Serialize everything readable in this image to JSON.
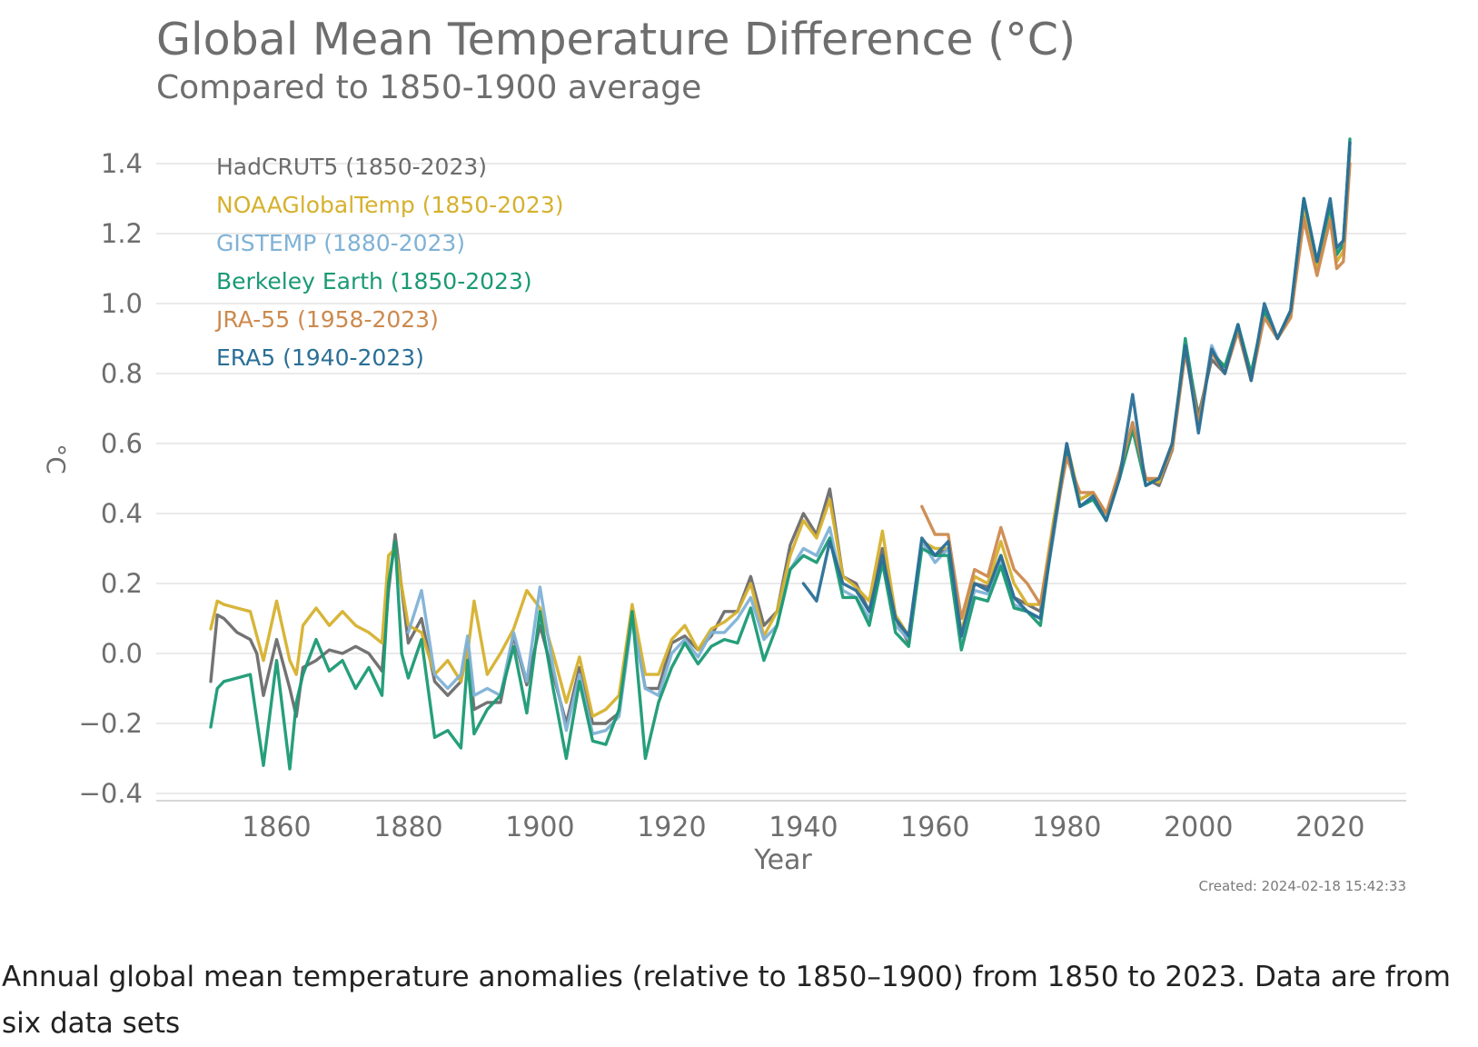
{
  "chart_data": {
    "type": "line",
    "title": "Global Mean Temperature Difference (°C)",
    "subtitle": "Compared to 1850-1900 average",
    "xlabel": "Year",
    "ylabel": "°C",
    "xlim": [
      1850,
      2023
    ],
    "ylim": [
      -0.4,
      1.45
    ],
    "xticks": [
      1860,
      1880,
      1900,
      1920,
      1940,
      1960,
      1980,
      2000,
      2020
    ],
    "yticks": [
      1.4,
      1.2,
      1.0,
      0.8,
      0.6,
      0.4,
      0.2,
      0.0,
      -0.2,
      -0.4
    ],
    "ytick_labels": [
      "1.4",
      "1.2",
      "1.0",
      "0.8",
      "0.6",
      "0.4",
      "0.2",
      "0.0",
      "−0.2",
      "−0.4"
    ],
    "grid": true,
    "legend_position": "top-left",
    "created": "Created: 2024-02-18 15:42:33",
    "series": [
      {
        "name": "HadCRUT5 (1850-2023)",
        "color": "#6b6b6b",
        "x": [
          1850,
          1851,
          1852,
          1854,
          1856,
          1857,
          1858,
          1860,
          1862,
          1863,
          1864,
          1866,
          1868,
          1870,
          1872,
          1874,
          1876,
          1877,
          1878,
          1880,
          1882,
          1884,
          1886,
          1888,
          1889,
          1890,
          1892,
          1894,
          1896,
          1898,
          1900,
          1902,
          1904,
          1906,
          1908,
          1910,
          1912,
          1914,
          1916,
          1918,
          1920,
          1922,
          1924,
          1926,
          1928,
          1930,
          1932,
          1934,
          1936,
          1938,
          1940,
          1942,
          1944,
          1946,
          1948,
          1950,
          1952,
          1954,
          1956,
          1958,
          1960,
          1962,
          1964,
          1966,
          1968,
          1970,
          1972,
          1974,
          1976,
          1978,
          1980,
          1982,
          1984,
          1986,
          1988,
          1990,
          1992,
          1994,
          1996,
          1998,
          2000,
          2002,
          2004,
          2006,
          2008,
          2010,
          2012,
          2014,
          2016,
          2018,
          2020,
          2021,
          2022,
          2023
        ],
        "values": [
          -0.08,
          0.11,
          0.1,
          0.06,
          0.04,
          0.0,
          -0.12,
          0.04,
          -0.1,
          -0.18,
          -0.04,
          -0.02,
          0.01,
          0.0,
          0.02,
          0.0,
          -0.05,
          0.18,
          0.34,
          0.03,
          0.1,
          -0.08,
          -0.12,
          -0.08,
          0.03,
          -0.16,
          -0.14,
          -0.14,
          0.05,
          -0.09,
          0.08,
          -0.06,
          -0.2,
          -0.04,
          -0.2,
          -0.2,
          -0.17,
          0.11,
          -0.1,
          -0.1,
          0.03,
          0.05,
          0.01,
          0.05,
          0.12,
          0.12,
          0.22,
          0.08,
          0.12,
          0.31,
          0.4,
          0.34,
          0.47,
          0.22,
          0.2,
          0.12,
          0.3,
          0.1,
          0.03,
          0.32,
          0.28,
          0.3,
          0.05,
          0.2,
          0.19,
          0.28,
          0.16,
          0.14,
          0.12,
          0.34,
          0.58,
          0.44,
          0.46,
          0.4,
          0.5,
          0.64,
          0.5,
          0.48,
          0.58,
          0.88,
          0.68,
          0.84,
          0.8,
          0.94,
          0.78,
          0.98,
          0.9,
          0.98,
          1.26,
          1.1,
          1.27,
          1.14,
          1.17,
          1.46
        ]
      },
      {
        "name": "NOAAGlobalTemp (1850-2023)",
        "color": "#d6b12e",
        "x": [
          1850,
          1851,
          1852,
          1854,
          1856,
          1858,
          1860,
          1862,
          1863,
          1864,
          1866,
          1868,
          1870,
          1872,
          1874,
          1876,
          1877,
          1878,
          1880,
          1882,
          1884,
          1886,
          1888,
          1889,
          1890,
          1892,
          1894,
          1896,
          1898,
          1900,
          1902,
          1904,
          1906,
          1908,
          1910,
          1912,
          1914,
          1916,
          1918,
          1920,
          1922,
          1924,
          1926,
          1928,
          1930,
          1932,
          1934,
          1936,
          1938,
          1940,
          1942,
          1944,
          1946,
          1948,
          1950,
          1952,
          1954,
          1956,
          1958,
          1960,
          1962,
          1964,
          1966,
          1968,
          1970,
          1972,
          1974,
          1976,
          1978,
          1980,
          1982,
          1984,
          1986,
          1988,
          1990,
          1992,
          1994,
          1996,
          1998,
          2000,
          2002,
          2004,
          2006,
          2008,
          2010,
          2012,
          2014,
          2016,
          2018,
          2020,
          2021,
          2022,
          2023
        ],
        "values": [
          0.07,
          0.15,
          0.14,
          0.13,
          0.12,
          -0.02,
          0.15,
          -0.02,
          -0.06,
          0.08,
          0.13,
          0.08,
          0.12,
          0.08,
          0.06,
          0.03,
          0.28,
          0.3,
          0.08,
          0.06,
          -0.06,
          -0.02,
          -0.08,
          0.0,
          0.15,
          -0.06,
          0.0,
          0.07,
          0.18,
          0.13,
          0.0,
          -0.14,
          -0.01,
          -0.18,
          -0.16,
          -0.12,
          0.14,
          -0.06,
          -0.06,
          0.04,
          0.08,
          0.01,
          0.07,
          0.09,
          0.12,
          0.2,
          0.05,
          0.12,
          0.28,
          0.38,
          0.33,
          0.44,
          0.22,
          0.19,
          0.15,
          0.35,
          0.11,
          0.05,
          0.32,
          0.3,
          0.3,
          0.06,
          0.22,
          0.2,
          0.32,
          0.2,
          0.14,
          0.14,
          0.38,
          0.6,
          0.44,
          0.46,
          0.4,
          0.52,
          0.64,
          0.5,
          0.49,
          0.6,
          0.88,
          0.66,
          0.86,
          0.82,
          0.92,
          0.8,
          0.98,
          0.9,
          0.96,
          1.28,
          1.1,
          1.25,
          1.12,
          1.15,
          1.43
        ]
      },
      {
        "name": "GISTEMP (1880-2023)",
        "color": "#7fb2d6",
        "x": [
          1880,
          1882,
          1884,
          1886,
          1888,
          1889,
          1890,
          1892,
          1894,
          1896,
          1898,
          1900,
          1902,
          1904,
          1906,
          1908,
          1910,
          1912,
          1914,
          1916,
          1918,
          1920,
          1922,
          1924,
          1926,
          1928,
          1930,
          1932,
          1934,
          1936,
          1938,
          1940,
          1942,
          1944,
          1946,
          1948,
          1950,
          1952,
          1954,
          1956,
          1958,
          1960,
          1962,
          1964,
          1966,
          1968,
          1970,
          1972,
          1974,
          1976,
          1978,
          1980,
          1982,
          1984,
          1986,
          1988,
          1990,
          1992,
          1994,
          1996,
          1998,
          2000,
          2002,
          2004,
          2006,
          2008,
          2010,
          2012,
          2014,
          2016,
          2018,
          2020,
          2021,
          2022,
          2023
        ],
        "values": [
          0.06,
          0.18,
          -0.06,
          -0.1,
          -0.06,
          0.05,
          -0.12,
          -0.1,
          -0.12,
          0.06,
          -0.08,
          0.19,
          -0.04,
          -0.22,
          -0.06,
          -0.23,
          -0.22,
          -0.18,
          0.1,
          -0.1,
          -0.12,
          0.0,
          0.04,
          -0.01,
          0.06,
          0.06,
          0.1,
          0.16,
          0.04,
          0.08,
          0.24,
          0.3,
          0.28,
          0.36,
          0.18,
          0.16,
          0.1,
          0.26,
          0.08,
          0.04,
          0.32,
          0.26,
          0.3,
          0.04,
          0.18,
          0.17,
          0.26,
          0.14,
          0.12,
          0.1,
          0.34,
          0.6,
          0.42,
          0.44,
          0.38,
          0.5,
          0.66,
          0.48,
          0.5,
          0.58,
          0.88,
          0.64,
          0.88,
          0.8,
          0.94,
          0.78,
          0.98,
          0.9,
          0.98,
          1.3,
          1.12,
          1.28,
          1.14,
          1.18,
          1.44
        ]
      },
      {
        "name": "Berkeley Earth (1850-2023)",
        "color": "#1a9a74",
        "x": [
          1850,
          1851,
          1852,
          1854,
          1856,
          1858,
          1860,
          1862,
          1863,
          1864,
          1866,
          1868,
          1870,
          1872,
          1874,
          1876,
          1877,
          1878,
          1879,
          1880,
          1882,
          1884,
          1886,
          1888,
          1889,
          1890,
          1892,
          1894,
          1896,
          1898,
          1900,
          1902,
          1904,
          1906,
          1908,
          1910,
          1912,
          1914,
          1916,
          1918,
          1920,
          1922,
          1924,
          1926,
          1928,
          1930,
          1932,
          1934,
          1936,
          1938,
          1940,
          1942,
          1944,
          1946,
          1948,
          1950,
          1952,
          1954,
          1956,
          1958,
          1960,
          1962,
          1964,
          1966,
          1968,
          1970,
          1972,
          1974,
          1976,
          1978,
          1980,
          1982,
          1984,
          1986,
          1988,
          1990,
          1992,
          1994,
          1996,
          1998,
          2000,
          2002,
          2004,
          2006,
          2008,
          2010,
          2012,
          2014,
          2016,
          2018,
          2020,
          2021,
          2022,
          2023
        ],
        "values": [
          -0.21,
          -0.1,
          -0.08,
          -0.07,
          -0.06,
          -0.32,
          -0.02,
          -0.33,
          -0.14,
          -0.06,
          0.04,
          -0.05,
          -0.02,
          -0.1,
          -0.04,
          -0.12,
          0.2,
          0.32,
          0.0,
          -0.07,
          0.04,
          -0.24,
          -0.22,
          -0.27,
          -0.02,
          -0.23,
          -0.16,
          -0.12,
          0.02,
          -0.17,
          0.12,
          -0.1,
          -0.3,
          -0.08,
          -0.25,
          -0.26,
          -0.16,
          0.12,
          -0.3,
          -0.14,
          -0.04,
          0.03,
          -0.03,
          0.02,
          0.04,
          0.03,
          0.13,
          -0.02,
          0.08,
          0.24,
          0.28,
          0.26,
          0.33,
          0.16,
          0.16,
          0.08,
          0.26,
          0.06,
          0.02,
          0.3,
          0.28,
          0.28,
          0.01,
          0.16,
          0.15,
          0.25,
          0.13,
          0.12,
          0.08,
          0.36,
          0.58,
          0.42,
          0.44,
          0.38,
          0.5,
          0.64,
          0.48,
          0.5,
          0.58,
          0.9,
          0.66,
          0.86,
          0.82,
          0.94,
          0.8,
          0.98,
          0.9,
          0.98,
          1.3,
          1.12,
          1.28,
          1.14,
          1.17,
          1.47
        ]
      },
      {
        "name": "JRA-55 (1958-2023)",
        "color": "#cc8a4e",
        "x": [
          1958,
          1960,
          1962,
          1964,
          1966,
          1968,
          1970,
          1972,
          1974,
          1976,
          1978,
          1980,
          1982,
          1984,
          1986,
          1988,
          1990,
          1992,
          1994,
          1996,
          1998,
          2000,
          2002,
          2004,
          2006,
          2008,
          2010,
          2012,
          2014,
          2016,
          2018,
          2020,
          2021,
          2022,
          2023
        ],
        "values": [
          0.42,
          0.34,
          0.34,
          0.1,
          0.24,
          0.22,
          0.36,
          0.24,
          0.2,
          0.14,
          0.36,
          0.56,
          0.46,
          0.46,
          0.4,
          0.52,
          0.66,
          0.5,
          0.5,
          0.58,
          0.86,
          0.66,
          0.86,
          0.8,
          0.92,
          0.78,
          0.96,
          0.9,
          0.96,
          1.24,
          1.08,
          1.24,
          1.1,
          1.12,
          1.4
        ]
      },
      {
        "name": "ERA5 (1940-2023)",
        "color": "#2a6f97",
        "x": [
          1940,
          1942,
          1944,
          1946,
          1948,
          1950,
          1952,
          1954,
          1956,
          1958,
          1960,
          1962,
          1964,
          1966,
          1968,
          1970,
          1972,
          1974,
          1976,
          1978,
          1980,
          1982,
          1984,
          1986,
          1988,
          1990,
          1992,
          1994,
          1996,
          1998,
          2000,
          2002,
          2004,
          2006,
          2008,
          2010,
          2012,
          2014,
          2016,
          2018,
          2020,
          2021,
          2022,
          2023
        ],
        "values": [
          0.2,
          0.15,
          0.32,
          0.2,
          0.18,
          0.12,
          0.28,
          0.1,
          0.05,
          0.33,
          0.28,
          0.32,
          0.05,
          0.2,
          0.18,
          0.28,
          0.16,
          0.12,
          0.1,
          0.35,
          0.6,
          0.42,
          0.45,
          0.38,
          0.5,
          0.74,
          0.48,
          0.5,
          0.6,
          0.88,
          0.63,
          0.87,
          0.8,
          0.94,
          0.78,
          1.0,
          0.9,
          0.98,
          1.3,
          1.12,
          1.3,
          1.16,
          1.18,
          1.46
        ]
      }
    ]
  },
  "caption": "Annual global mean temperature anomalies (relative to 1850–1900) from 1850 to 2023. Data are from six data sets"
}
